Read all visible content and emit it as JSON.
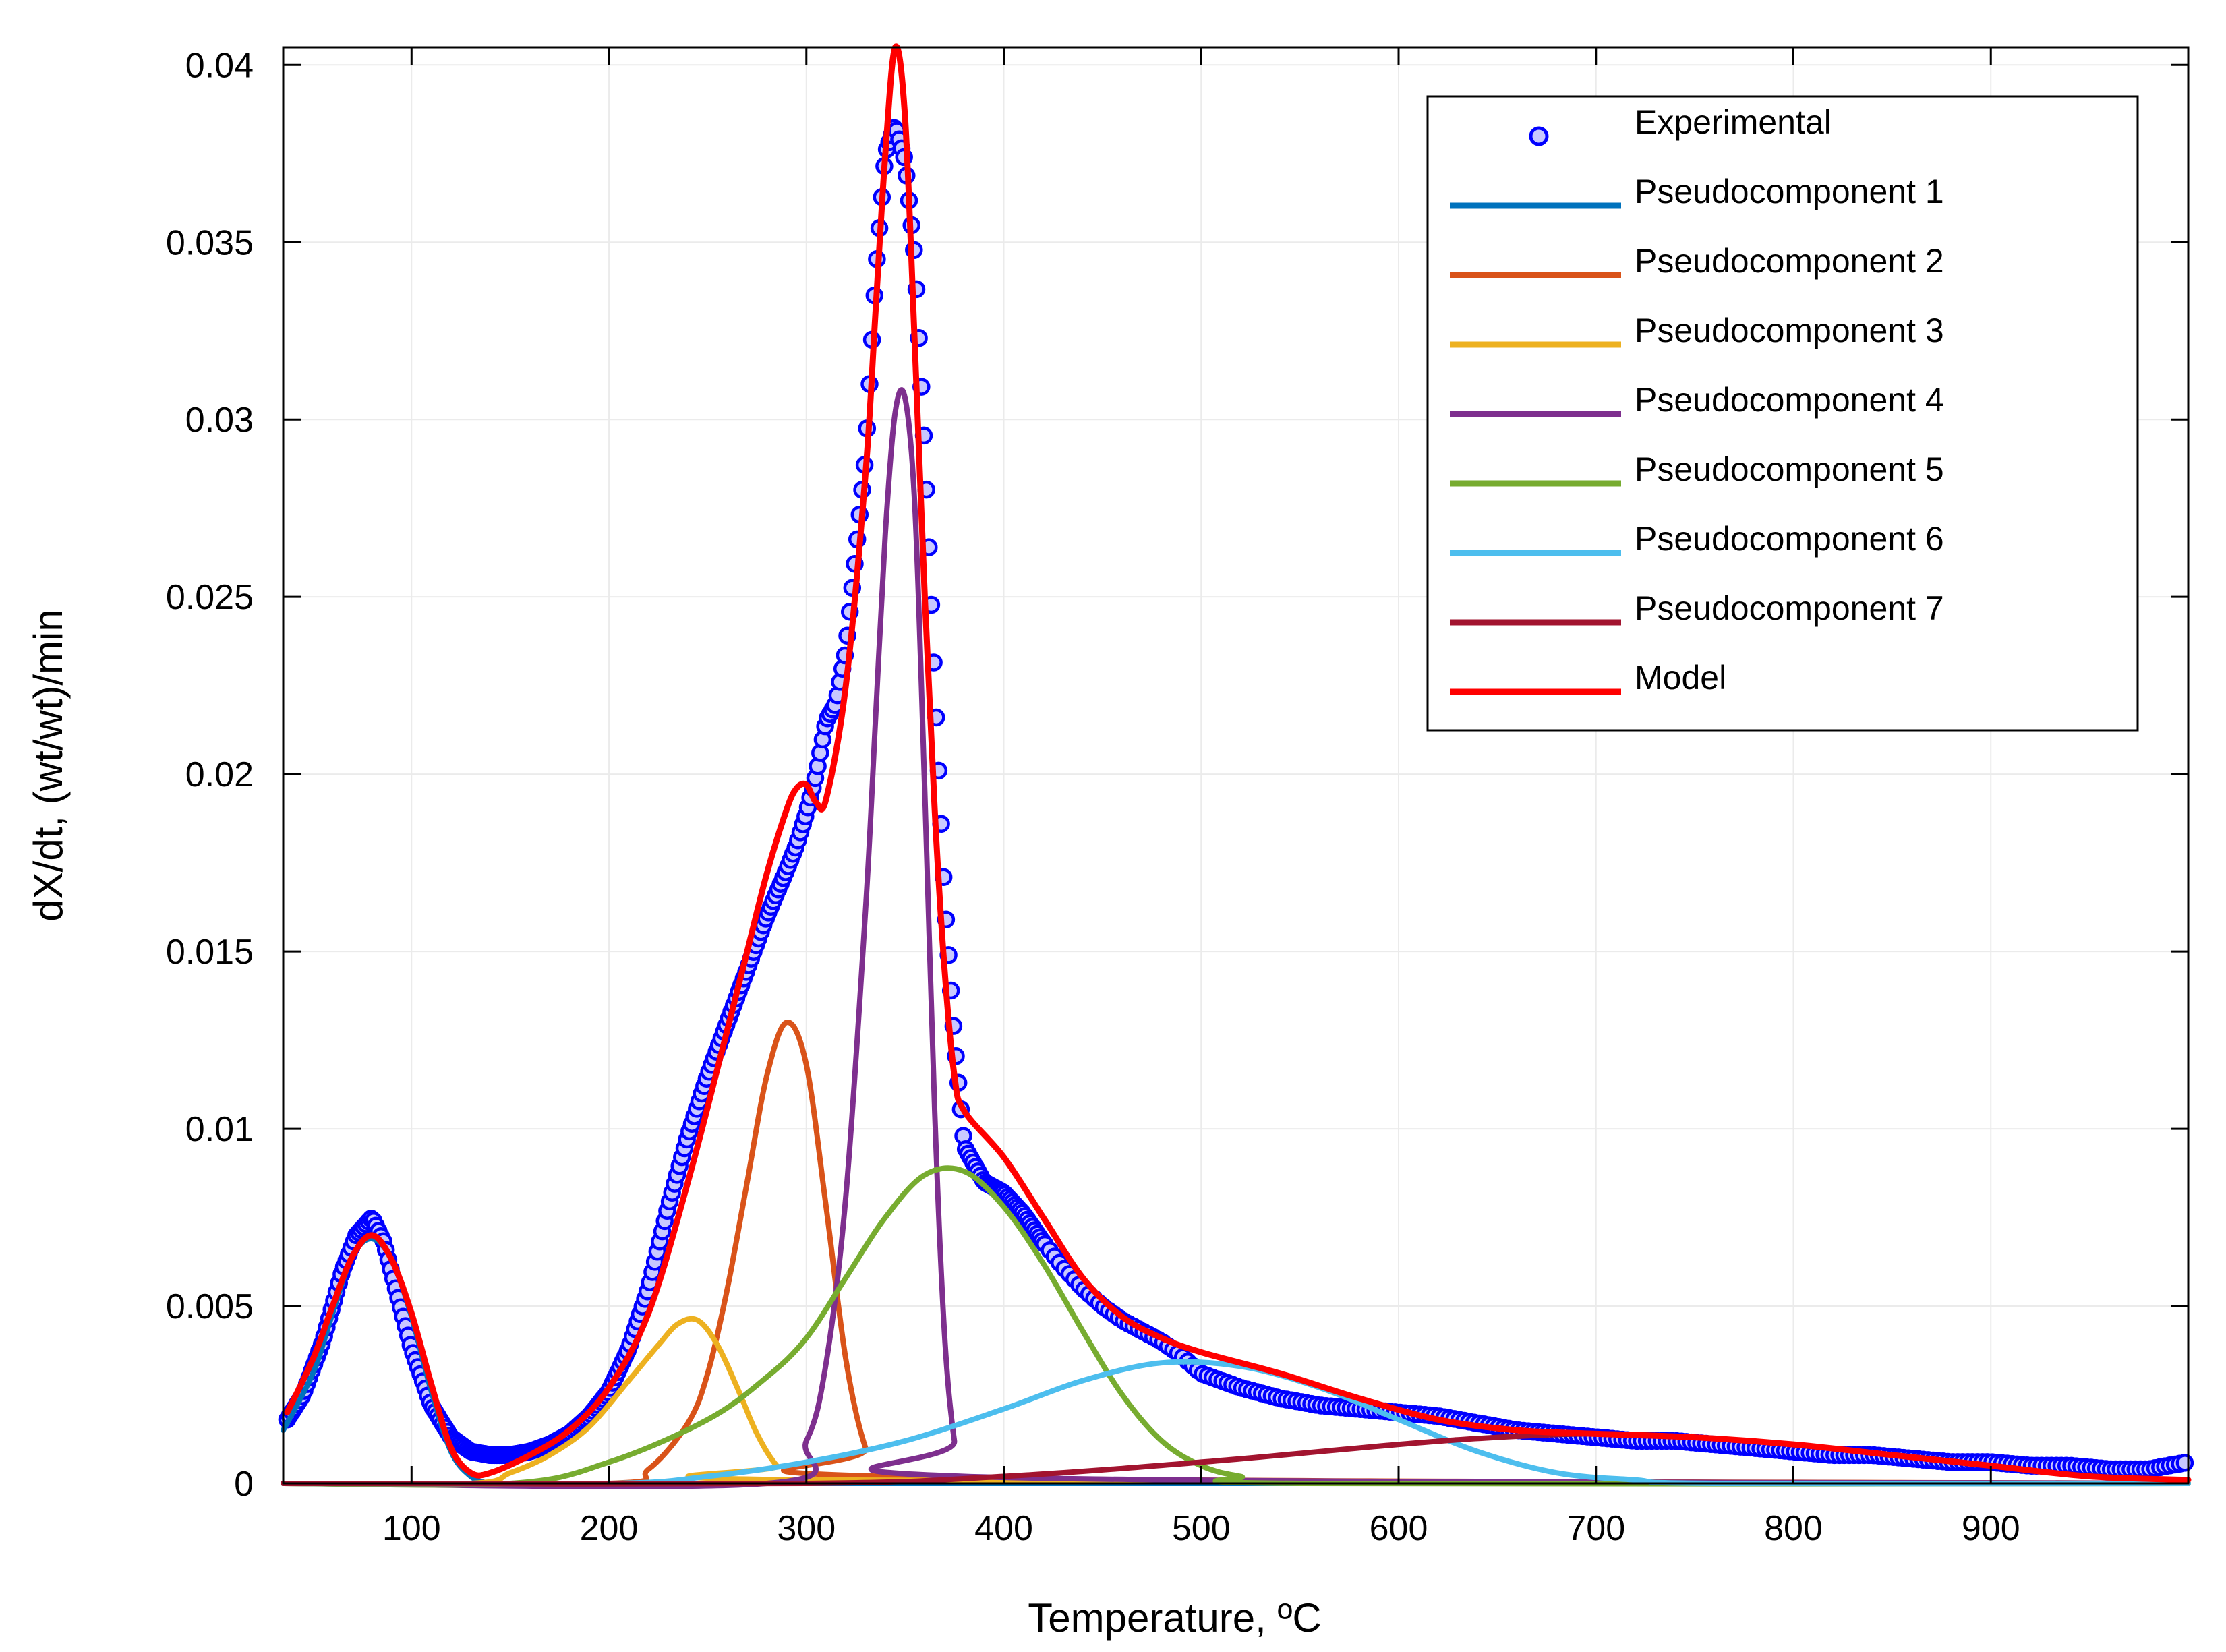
{
  "chart_data": {
    "type": "line",
    "title": "",
    "xlabel": "Temperature, ºC",
    "ylabel": "dX/dt, (wt/wt)/min",
    "xlim": [
      35,
      1000
    ],
    "ylim": [
      0,
      0.0405
    ],
    "xticks": [
      100,
      200,
      300,
      400,
      500,
      600,
      700,
      800,
      900
    ],
    "xtick_labels": [
      "100",
      "200",
      "300",
      "400",
      "500",
      "600",
      "700",
      "800",
      "900"
    ],
    "yticks": [
      0,
      0.005,
      0.01,
      0.015,
      0.02,
      0.025,
      0.03,
      0.035,
      0.04
    ],
    "ytick_labels": [
      "0",
      "0.005",
      "0.01",
      "0.015",
      "0.02",
      "0.025",
      "0.03",
      "0.035",
      "0.04"
    ],
    "grid": true,
    "legend_position": "top-right",
    "legend": [
      "Experimental",
      "Pseudocomponent 1",
      "Pseudocomponent 2",
      "Pseudocomponent 3",
      "Pseudocomponent 4",
      "Pseudocomponent 5",
      "Pseudocomponent 6",
      "Pseudocomponent 7",
      "Model"
    ],
    "series": [
      {
        "name": "Experimental",
        "kind": "scatter",
        "color": "#0000ff",
        "x": [
          37,
          45,
          55,
          65,
          72,
          80,
          86,
          92,
          100,
          110,
          120,
          130,
          140,
          150,
          160,
          170,
          180,
          190,
          200,
          210,
          220,
          230,
          240,
          250,
          260,
          270,
          280,
          290,
          295,
          300,
          305,
          310,
          315,
          320,
          325,
          330,
          335,
          340,
          345,
          350,
          355,
          360,
          365,
          370,
          375,
          380,
          390,
          400,
          410,
          420,
          430,
          440,
          450,
          460,
          470,
          480,
          490,
          500,
          520,
          540,
          560,
          580,
          600,
          620,
          640,
          660,
          680,
          700,
          720,
          740,
          760,
          780,
          800,
          820,
          840,
          860,
          880,
          900,
          920,
          940,
          960,
          980,
          1000
        ],
        "y": [
          0.0018,
          0.0025,
          0.004,
          0.006,
          0.007,
          0.0075,
          0.0068,
          0.0055,
          0.0038,
          0.0022,
          0.0013,
          0.0009,
          0.0008,
          0.0008,
          0.0009,
          0.0011,
          0.0014,
          0.0019,
          0.0026,
          0.0038,
          0.0055,
          0.0078,
          0.0098,
          0.0115,
          0.013,
          0.0145,
          0.016,
          0.0173,
          0.018,
          0.0189,
          0.02,
          0.0215,
          0.022,
          0.0235,
          0.0262,
          0.029,
          0.034,
          0.0375,
          0.0383,
          0.0373,
          0.0345,
          0.029,
          0.0225,
          0.0165,
          0.0125,
          0.0095,
          0.0085,
          0.0082,
          0.0076,
          0.0068,
          0.0061,
          0.0055,
          0.005,
          0.0046,
          0.0043,
          0.004,
          0.0036,
          0.0031,
          0.0027,
          0.0024,
          0.0022,
          0.0021,
          0.002,
          0.0019,
          0.0017,
          0.0015,
          0.0014,
          0.0013,
          0.0012,
          0.0012,
          0.0011,
          0.001,
          0.0009,
          0.0008,
          0.0008,
          0.0007,
          0.0006,
          0.0006,
          0.0005,
          0.0005,
          0.0004,
          0.0004,
          0.0006
        ]
      },
      {
        "name": "Pseudocomponent 1",
        "kind": "line",
        "color": "#0072bd",
        "x": [
          35,
          50,
          60,
          70,
          80,
          90,
          100,
          110,
          120,
          130,
          140,
          150,
          200,
          1000
        ],
        "y": [
          0.0015,
          0.0031,
          0.0048,
          0.0064,
          0.0069,
          0.0063,
          0.0047,
          0.0026,
          0.0009,
          0.0002,
          0.0,
          0.0,
          0.0,
          0.0
        ]
      },
      {
        "name": "Pseudocomponent 2",
        "kind": "line",
        "color": "#d95319",
        "x": [
          35,
          200,
          220,
          240,
          250,
          260,
          270,
          280,
          290,
          300,
          310,
          320,
          330,
          340,
          1000
        ],
        "y": [
          0.0,
          0.0,
          0.0004,
          0.0017,
          0.0031,
          0.0055,
          0.0085,
          0.0115,
          0.013,
          0.0118,
          0.0078,
          0.0035,
          0.001,
          0.0002,
          0.0
        ]
      },
      {
        "name": "Pseudocomponent 3",
        "kind": "line",
        "color": "#edb120",
        "x": [
          35,
          130,
          150,
          170,
          190,
          210,
          225,
          235,
          245,
          255,
          265,
          275,
          285,
          295,
          1000
        ],
        "y": [
          0.0,
          0.0,
          0.0003,
          0.0008,
          0.0016,
          0.0029,
          0.0039,
          0.0045,
          0.0046,
          0.0039,
          0.0027,
          0.0014,
          0.0005,
          0.0001,
          0.0
        ]
      },
      {
        "name": "Pseudocomponent 4",
        "kind": "line",
        "color": "#7e2f8e",
        "x": [
          35,
          280,
          300,
          310,
          320,
          330,
          335,
          340,
          345,
          350,
          355,
          360,
          365,
          370,
          375,
          380,
          1000
        ],
        "y": [
          0.0,
          0.0,
          0.0012,
          0.0034,
          0.0081,
          0.0162,
          0.0215,
          0.0268,
          0.0302,
          0.0306,
          0.0275,
          0.0195,
          0.0105,
          0.0042,
          0.0012,
          0.0002,
          0.0
        ]
      },
      {
        "name": "Pseudocomponent 5",
        "kind": "line",
        "color": "#77ac30",
        "x": [
          35,
          150,
          200,
          250,
          280,
          300,
          320,
          340,
          360,
          380,
          400,
          420,
          440,
          460,
          480,
          500,
          520,
          550,
          1000
        ],
        "y": [
          0.0,
          0.0,
          0.0006,
          0.0018,
          0.003,
          0.0041,
          0.0058,
          0.0075,
          0.0087,
          0.0088,
          0.0078,
          0.0062,
          0.0043,
          0.0025,
          0.0012,
          0.0005,
          0.0002,
          0.0,
          0.0
        ]
      },
      {
        "name": "Pseudocomponent 6",
        "kind": "line",
        "color": "#4dbeee",
        "x": [
          35,
          200,
          250,
          300,
          350,
          400,
          440,
          480,
          520,
          560,
          600,
          640,
          680,
          720,
          760,
          1000
        ],
        "y": [
          0.0,
          0.0,
          0.0002,
          0.0006,
          0.0012,
          0.0021,
          0.0029,
          0.0034,
          0.0033,
          0.0027,
          0.0018,
          0.0009,
          0.0003,
          0.0001,
          0.0,
          0.0
        ]
      },
      {
        "name": "Pseudocomponent 7",
        "kind": "line",
        "color": "#a2142f",
        "x": [
          35,
          300,
          400,
          500,
          600,
          650,
          700,
          750,
          800,
          850,
          900,
          950,
          1000
        ],
        "y": [
          0.0,
          0.0,
          0.0002,
          0.0006,
          0.0011,
          0.0013,
          0.0014,
          0.0013,
          0.0011,
          0.0008,
          0.0005,
          0.0002,
          0.0001
        ]
      },
      {
        "name": "Model",
        "kind": "line",
        "color": "#ff0000",
        "x": [
          37,
          50,
          60,
          70,
          80,
          90,
          100,
          110,
          120,
          130,
          140,
          160,
          180,
          200,
          220,
          240,
          260,
          270,
          280,
          290,
          295,
          300,
          305,
          310,
          320,
          330,
          335,
          340,
          345,
          350,
          355,
          360,
          365,
          370,
          375,
          380,
          400,
          420,
          440,
          460,
          480,
          500,
          540,
          580,
          620,
          660,
          700,
          750,
          800,
          850,
          900,
          950,
          1000
        ],
        "y": [
          0.002,
          0.0035,
          0.005,
          0.0064,
          0.007,
          0.0063,
          0.0048,
          0.0028,
          0.001,
          0.0003,
          0.0003,
          0.0008,
          0.0015,
          0.0027,
          0.0048,
          0.0085,
          0.0128,
          0.015,
          0.0172,
          0.019,
          0.0196,
          0.0197,
          0.0192,
          0.0193,
          0.0225,
          0.0285,
          0.033,
          0.0375,
          0.0405,
          0.0385,
          0.032,
          0.025,
          0.019,
          0.0145,
          0.0115,
          0.0105,
          0.0092,
          0.0075,
          0.0058,
          0.0047,
          0.0041,
          0.0037,
          0.0031,
          0.0024,
          0.0018,
          0.0015,
          0.0014,
          0.0013,
          0.0011,
          0.0008,
          0.0005,
          0.0002,
          0.0001
        ]
      }
    ]
  }
}
